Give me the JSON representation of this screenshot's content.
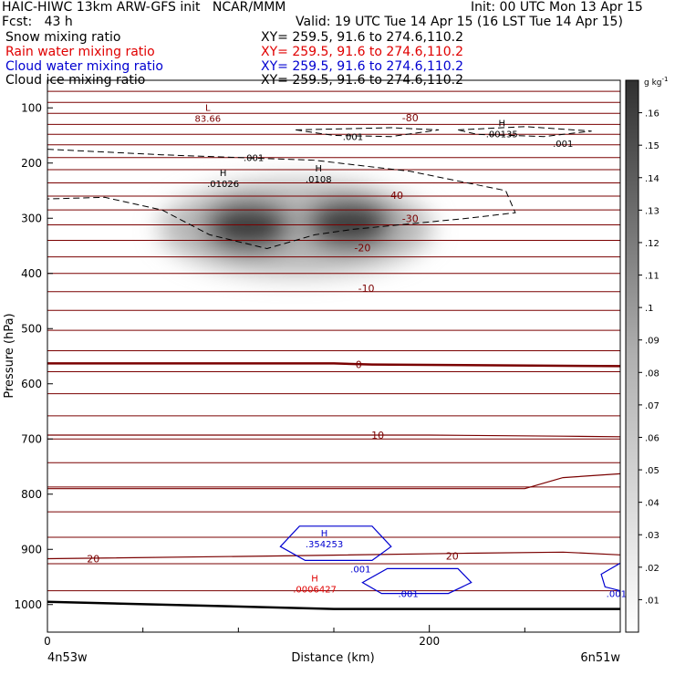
{
  "header": {
    "title_left": "HAIC-HIWC 13km ARW-GFS init   NCAR/MMM",
    "init": "Init: 00 UTC Mon 13 Apr 15",
    "fcst": "Fcst:   43 h",
    "valid": "Valid: 19 UTC Tue 14 Apr 15 (16 LST Tue 14 Apr 15)",
    "fields": [
      {
        "name": "Snow mixing ratio",
        "xy": "XY= 259.5, 91.6 to 274.6,110.2",
        "color": "#000000"
      },
      {
        "name": "Rain water mixing ratio",
        "xy": "XY= 259.5, 91.6 to 274.6,110.2",
        "color": "#e00000"
      },
      {
        "name": "Cloud water mixing ratio",
        "xy": "XY= 259.5, 91.6 to 274.6,110.2",
        "color": "#0000d0"
      },
      {
        "name": "Cloud ice mixing ratio",
        "xy": "XY= 259.5, 91.6 to 274.6,110.2",
        "color": "#000000"
      }
    ]
  },
  "chart_data": {
    "type": "cross-section",
    "ylabel": "Pressure (hPa)",
    "xlabel": "Distance (km)",
    "x_ticks": [
      0,
      200
    ],
    "xlim": [
      0,
      300
    ],
    "y_ticks": [
      100,
      200,
      300,
      400,
      500,
      600,
      700,
      800,
      900,
      1000
    ],
    "ylim": [
      50,
      1050
    ],
    "endpoints": {
      "left": "4n53w",
      "right": "6n51w"
    },
    "colorbar": {
      "unit": "g kg",
      "unit_exp": "-1",
      "ticks": [
        ".01",
        ".02",
        ".03",
        ".04",
        ".05",
        ".06",
        ".07",
        ".08",
        ".09",
        ".1",
        ".11",
        ".12",
        ".13",
        ".14",
        ".15",
        ".16"
      ],
      "min": 0,
      "max": 0.17
    },
    "temperature_isotherms": [
      {
        "label": "-80",
        "x": 190,
        "p": 118
      },
      {
        "label": "-40",
        "x": 182,
        "p": 258
      },
      {
        "label": "-30",
        "x": 190,
        "p": 300
      },
      {
        "label": "-20",
        "x": 165,
        "p": 353
      },
      {
        "label": "-10",
        "x": 167,
        "p": 427
      },
      {
        "label": "0",
        "x": 163,
        "p": 565
      },
      {
        "label": "10",
        "x": 173,
        "p": 693
      },
      {
        "label": "20",
        "x": 24,
        "p": 917
      },
      {
        "label": "20",
        "x": 212,
        "p": 912
      }
    ],
    "isobar_levels": [
      70,
      90,
      110,
      130,
      148,
      167,
      190,
      212,
      236,
      260,
      285,
      312,
      340,
      370,
      400,
      433,
      467,
      503,
      540,
      578,
      618,
      658,
      700,
      743,
      787,
      832,
      878,
      926,
      975
    ],
    "extrema": [
      {
        "kind": "L",
        "value": "83.66",
        "x": 84,
        "p": 112,
        "color": "#7a0000"
      },
      {
        "kind": "H",
        "value": ".01026",
        "x": 92,
        "p": 230,
        "color": "#000000"
      },
      {
        "kind": "H",
        "value": ".0108",
        "x": 142,
        "p": 222,
        "color": "#000000"
      },
      {
        "kind": "H",
        "value": ".00135",
        "x": 238,
        "p": 140,
        "color": "#000000"
      },
      {
        "kind": "H",
        "value": ".354253",
        "x": 145,
        "p": 883,
        "color": "#0000d0"
      },
      {
        "kind": "H",
        "value": ".0006427",
        "x": 140,
        "p": 965,
        "color": "#e00000"
      }
    ],
    "contour_labels": [
      {
        "text": ".001",
        "x": 160,
        "p": 152,
        "color": "#000000"
      },
      {
        "text": ".001",
        "x": 108,
        "p": 190,
        "color": "#000000"
      },
      {
        "text": ".001",
        "x": 270,
        "p": 164,
        "color": "#000000"
      },
      {
        "text": ".001",
        "x": 164,
        "p": 935,
        "color": "#0000d0"
      },
      {
        "text": ".001",
        "x": 189,
        "p": 980,
        "color": "#0000d0"
      },
      {
        "text": ".001",
        "x": 298,
        "p": 980,
        "color": "#0000d0"
      }
    ],
    "snow_maxima": [
      {
        "x": 105,
        "p": 315,
        "value": 0.12
      },
      {
        "x": 158,
        "p": 310,
        "value": 0.12
      }
    ]
  }
}
